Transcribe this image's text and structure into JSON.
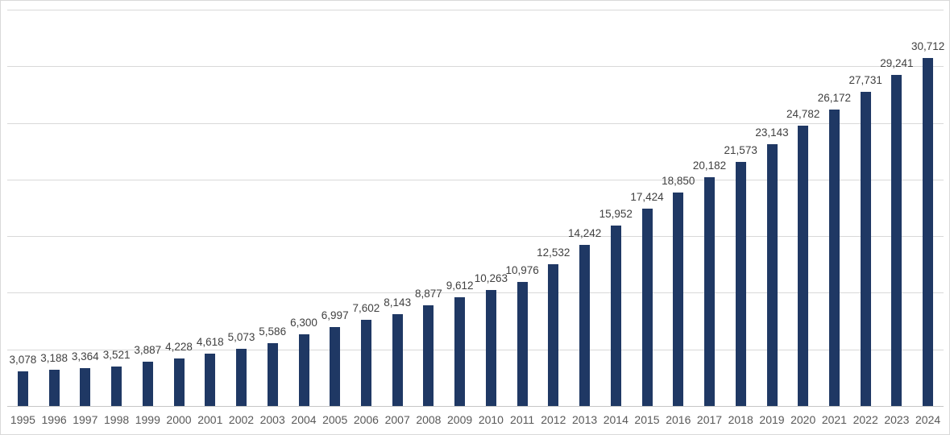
{
  "chart_data": {
    "type": "bar",
    "title": "",
    "xlabel": "",
    "ylabel": "",
    "categories": [
      "1995",
      "1996",
      "1997",
      "1998",
      "1999",
      "2000",
      "2001",
      "2002",
      "2003",
      "2004",
      "2005",
      "2006",
      "2007",
      "2008",
      "2009",
      "2010",
      "2011",
      "2012",
      "2013",
      "2014",
      "2015",
      "2016",
      "2017",
      "2018",
      "2019",
      "2020",
      "2021",
      "2022",
      "2023",
      "2024"
    ],
    "values": [
      3078,
      3188,
      3364,
      3521,
      3887,
      4228,
      4618,
      5073,
      5586,
      6300,
      6997,
      7602,
      8143,
      8877,
      9612,
      10263,
      10976,
      12532,
      14242,
      15952,
      17424,
      18850,
      20182,
      21573,
      23143,
      24782,
      26172,
      27731,
      29241,
      30712
    ],
    "data_labels": [
      "3,078",
      "3,188",
      "3,364",
      "3,521",
      "3,887",
      "4,228",
      "4,618",
      "5,073",
      "5,586",
      "6,300",
      "6,997",
      "7,602",
      "8,143",
      "8,877",
      "9,612",
      "10,263",
      "10,976",
      "12,532",
      "14,242",
      "15,952",
      "17,424",
      "18,850",
      "20,182",
      "21,573",
      "23,143",
      "24,782",
      "26,172",
      "27,731",
      "29,241",
      "30,712"
    ],
    "ylim": [
      0,
      35000
    ],
    "gridline_interval": 5000,
    "grid": true,
    "legend": false,
    "y_tick_labels_visible": false,
    "colors": {
      "bar": "#1f3864",
      "data_label": "#404040",
      "axis_tick_label": "#595959",
      "gridline": "#d9d9d9",
      "axis_line": "#c6c6c6",
      "background": "#ffffff",
      "chart_border": "#d9d9d9"
    }
  }
}
